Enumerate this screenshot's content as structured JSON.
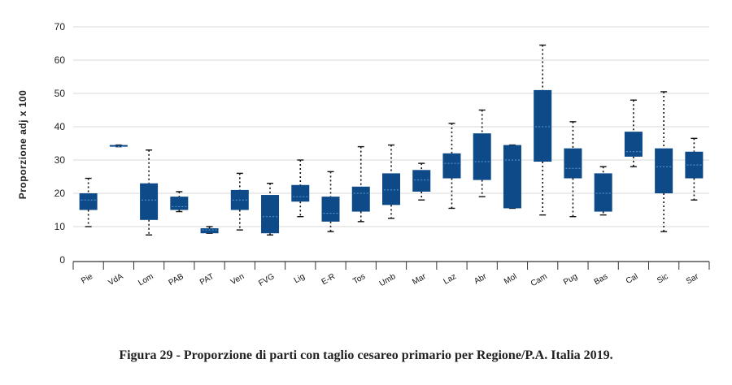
{
  "chart_data": {
    "type": "boxplot",
    "caption": "Figura 29 - Proporzione di parti con taglio cesareo primario per Regione/P.A. Italia 2019.",
    "ylabel": "Proporzione adj x 100",
    "ylim": [
      0,
      70
    ],
    "yticks": [
      0,
      10,
      20,
      30,
      40,
      50,
      60,
      70
    ],
    "grid": true,
    "colors": {
      "box": "#0d4a87",
      "median": "#5a9fd6",
      "whisker": "#111111",
      "grid": "#d9d9d9"
    },
    "categories": [
      "Pie",
      "VdA",
      "Lom",
      "PAB",
      "PAT",
      "Ven",
      "FVG",
      "Lig",
      "E-R",
      "Tos",
      "Umb",
      "Mar",
      "Laz",
      "Abr",
      "Mol",
      "Cam",
      "Pug",
      "Bas",
      "Cal",
      "Sic",
      "Sar"
    ],
    "boxes": [
      {
        "cat": "Pie",
        "min": 10,
        "q1": 15,
        "median": 18,
        "q3": 20,
        "max": 24.5
      },
      {
        "cat": "VdA",
        "min": 34,
        "q1": 34,
        "median": 34,
        "q3": 34.5,
        "max": 34.5
      },
      {
        "cat": "Lom",
        "min": 7.5,
        "q1": 12,
        "median": 18,
        "q3": 23,
        "max": 33
      },
      {
        "cat": "PAB",
        "min": 14.5,
        "q1": 15,
        "median": 16,
        "q3": 19,
        "max": 20.5
      },
      {
        "cat": "PAT",
        "min": 8,
        "q1": 8,
        "median": 9,
        "q3": 9.5,
        "max": 10
      },
      {
        "cat": "Ven",
        "min": 9,
        "q1": 15,
        "median": 18,
        "q3": 21,
        "max": 26
      },
      {
        "cat": "FVG",
        "min": 7.5,
        "q1": 8,
        "median": 13,
        "q3": 19.5,
        "max": 23
      },
      {
        "cat": "Lig",
        "min": 13,
        "q1": 17.5,
        "median": 19,
        "q3": 22.5,
        "max": 30
      },
      {
        "cat": "E-R",
        "min": 8.5,
        "q1": 11.5,
        "median": 14,
        "q3": 19,
        "max": 26.5
      },
      {
        "cat": "Tos",
        "min": 11.5,
        "q1": 14.5,
        "median": 20,
        "q3": 22,
        "max": 34
      },
      {
        "cat": "Umb",
        "min": 12.5,
        "q1": 16.5,
        "median": 21,
        "q3": 26,
        "max": 34.5
      },
      {
        "cat": "Mar",
        "min": 18,
        "q1": 20.5,
        "median": 24,
        "q3": 27,
        "max": 29
      },
      {
        "cat": "Laz",
        "min": 15.5,
        "q1": 24.5,
        "median": 29,
        "q3": 32,
        "max": 41
      },
      {
        "cat": "Abr",
        "min": 19,
        "q1": 24,
        "median": 29.5,
        "q3": 38,
        "max": 45
      },
      {
        "cat": "Mol",
        "min": 15.5,
        "q1": 15.5,
        "median": 30,
        "q3": 34.5,
        "max": 34.5
      },
      {
        "cat": "Cam",
        "min": 13.5,
        "q1": 29.5,
        "median": 40,
        "q3": 51,
        "max": 64.5
      },
      {
        "cat": "Pug",
        "min": 13,
        "q1": 24.5,
        "median": 27.5,
        "q3": 33.5,
        "max": 41.5
      },
      {
        "cat": "Bas",
        "min": 13.5,
        "q1": 14.5,
        "median": 20,
        "q3": 26,
        "max": 28
      },
      {
        "cat": "Cal",
        "min": 28,
        "q1": 31,
        "median": 32.5,
        "q3": 38.5,
        "max": 48
      },
      {
        "cat": "Sic",
        "min": 8.5,
        "q1": 20,
        "median": 28,
        "q3": 33.5,
        "max": 50.5
      },
      {
        "cat": "Sar",
        "min": 18,
        "q1": 24.5,
        "median": 28.5,
        "q3": 32.5,
        "max": 36.5
      }
    ]
  }
}
